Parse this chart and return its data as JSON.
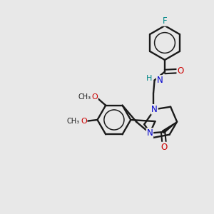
{
  "bg": "#e8e8e8",
  "bc": "#1a1a1a",
  "nc": "#0000cc",
  "oc": "#cc0000",
  "fc": "#008888",
  "hc": "#008888",
  "lw": 1.7,
  "fs": 8.5,
  "xlim": [
    0,
    10
  ],
  "ylim": [
    0,
    10
  ]
}
